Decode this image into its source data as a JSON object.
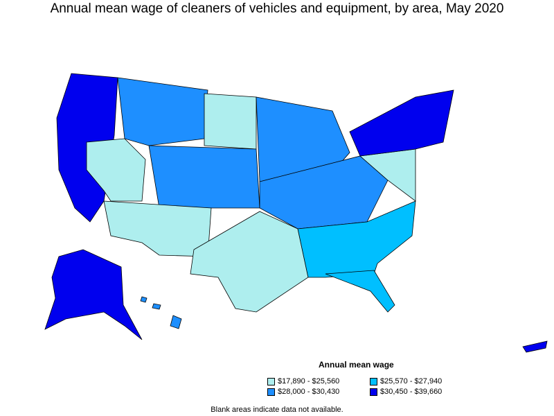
{
  "title": "Annual mean wage of cleaners of vehicles and equipment, by area, May 2020",
  "legend": {
    "title": "Annual mean wage",
    "items": [
      {
        "label": "$17,890 - $25,560",
        "color": "#aeeeee"
      },
      {
        "label": "$25,570 - $27,940",
        "color": "#00bfff"
      },
      {
        "label": "$28,000 - $30,430",
        "color": "#1e8fff"
      },
      {
        "label": "$30,450 - $39,660",
        "color": "#0000ee"
      }
    ]
  },
  "note": "Blank areas indicate data not available."
}
